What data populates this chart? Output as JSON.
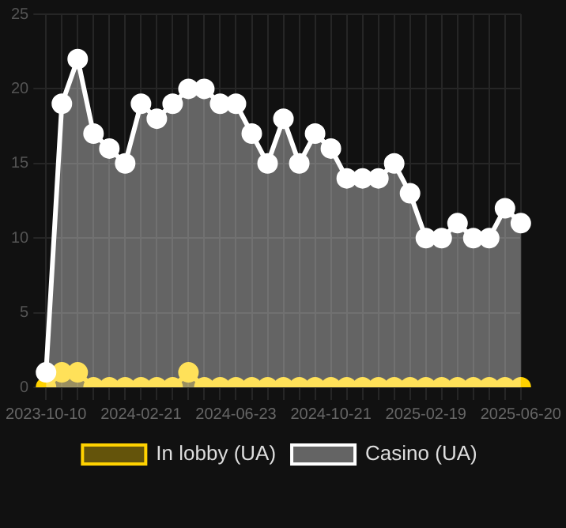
{
  "chart_data": {
    "type": "area",
    "categories": [
      "2023-10-10",
      null,
      null,
      null,
      null,
      null,
      "2024-02-21",
      null,
      null,
      null,
      null,
      null,
      "2024-06-23",
      null,
      null,
      null,
      null,
      null,
      "2024-10-21",
      null,
      null,
      null,
      null,
      null,
      "2025-02-19",
      null,
      null,
      null,
      null,
      null,
      "2025-06-20"
    ],
    "series": [
      {
        "name": "In lobby (UA)",
        "color": "#ffd200",
        "values": [
          0,
          1,
          1,
          0,
          0,
          0,
          0,
          0,
          0,
          1,
          0,
          0,
          0,
          0,
          0,
          0,
          0,
          0,
          0,
          0,
          0,
          0,
          0,
          0,
          0,
          0,
          0,
          0,
          0,
          0,
          0
        ]
      },
      {
        "name": "Casino (UA)",
        "color": "#ffffff",
        "values": [
          1,
          19,
          22,
          17,
          16,
          15,
          19,
          18,
          19,
          20,
          20,
          19,
          19,
          17,
          15,
          18,
          15,
          17,
          16,
          14,
          14,
          14,
          15,
          13,
          10,
          10,
          11,
          10,
          10,
          12,
          11
        ]
      }
    ],
    "ylim": [
      0,
      25
    ],
    "yticks": [
      0,
      5,
      10,
      15,
      20,
      25
    ],
    "grid": true,
    "legend": "bottom",
    "marker": "circle"
  }
}
